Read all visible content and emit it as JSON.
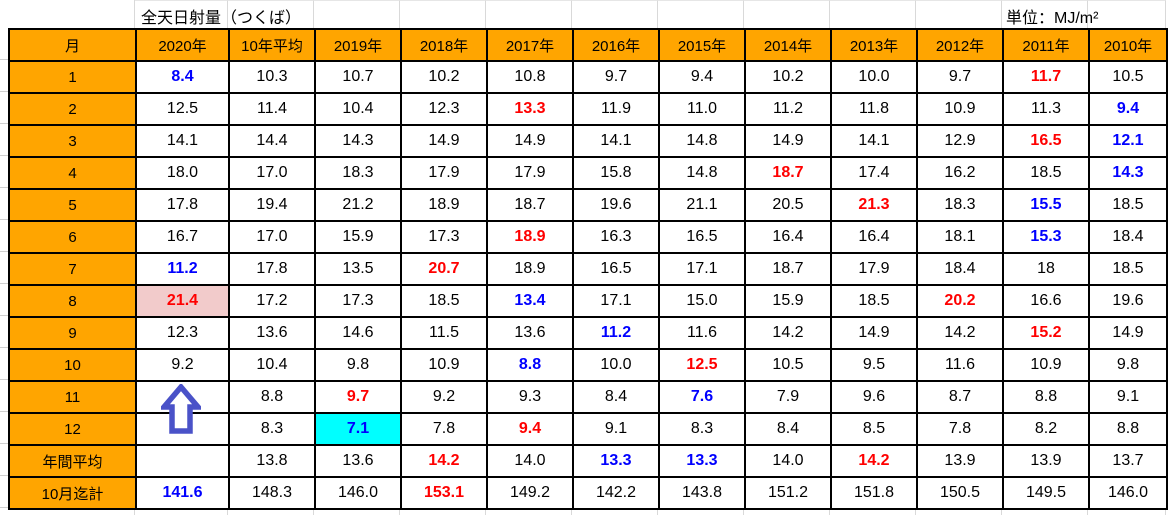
{
  "title": "全天日射量（つくば）",
  "unit_label": "単位：MJ/m²",
  "colors": {
    "header_bg": "#FFA500",
    "highlight_pink": "#F2CBCB",
    "highlight_cyan": "#00FFFF",
    "value_blue": "#0000FF",
    "value_red": "#FF0000",
    "arrow_blue": "#4A52C8",
    "border_black": "#000000",
    "gridline_gray": "#D9D9D9"
  },
  "annotations": {
    "up_arrow": {
      "shape": "block-up-arrow-outline",
      "color": "#4A52C8",
      "location": "2020年 column, rows 11-12 (missing data)"
    }
  },
  "table": {
    "columns": [
      "月",
      "2020年",
      "10年平均",
      "2019年",
      "2018年",
      "2017年",
      "2016年",
      "2015年",
      "2014年",
      "2013年",
      "2012年",
      "2011年",
      "2010年"
    ],
    "rows": [
      {
        "label": "1",
        "cells": [
          {
            "v": "8.4",
            "c": "blue"
          },
          {
            "v": "10.3"
          },
          {
            "v": "10.7"
          },
          {
            "v": "10.2"
          },
          {
            "v": "10.8"
          },
          {
            "v": "9.7"
          },
          {
            "v": "9.4"
          },
          {
            "v": "10.2"
          },
          {
            "v": "10.0"
          },
          {
            "v": "9.7"
          },
          {
            "v": "11.7",
            "c": "red"
          },
          {
            "v": "10.5"
          }
        ]
      },
      {
        "label": "2",
        "cells": [
          {
            "v": "12.5"
          },
          {
            "v": "11.4"
          },
          {
            "v": "10.4"
          },
          {
            "v": "12.3"
          },
          {
            "v": "13.3",
            "c": "red"
          },
          {
            "v": "11.9"
          },
          {
            "v": "11.0"
          },
          {
            "v": "11.2"
          },
          {
            "v": "11.8"
          },
          {
            "v": "10.9"
          },
          {
            "v": "11.3"
          },
          {
            "v": "9.4",
            "c": "blue"
          }
        ]
      },
      {
        "label": "3",
        "cells": [
          {
            "v": "14.1"
          },
          {
            "v": "14.4"
          },
          {
            "v": "14.3"
          },
          {
            "v": "14.9"
          },
          {
            "v": "14.9"
          },
          {
            "v": "14.1"
          },
          {
            "v": "14.8"
          },
          {
            "v": "14.9"
          },
          {
            "v": "14.1"
          },
          {
            "v": "12.9"
          },
          {
            "v": "16.5",
            "c": "red"
          },
          {
            "v": "12.1",
            "c": "blue"
          }
        ]
      },
      {
        "label": "4",
        "cells": [
          {
            "v": "18.0"
          },
          {
            "v": "17.0"
          },
          {
            "v": "18.3"
          },
          {
            "v": "17.9"
          },
          {
            "v": "17.9"
          },
          {
            "v": "15.8"
          },
          {
            "v": "14.8"
          },
          {
            "v": "18.7",
            "c": "red"
          },
          {
            "v": "17.4"
          },
          {
            "v": "16.2"
          },
          {
            "v": "18.5"
          },
          {
            "v": "14.3",
            "c": "blue"
          }
        ]
      },
      {
        "label": "5",
        "cells": [
          {
            "v": "17.8"
          },
          {
            "v": "19.4"
          },
          {
            "v": "21.2"
          },
          {
            "v": "18.9"
          },
          {
            "v": "18.7"
          },
          {
            "v": "19.6"
          },
          {
            "v": "21.1"
          },
          {
            "v": "20.5"
          },
          {
            "v": "21.3",
            "c": "red"
          },
          {
            "v": "18.3"
          },
          {
            "v": "15.5",
            "c": "blue"
          },
          {
            "v": "18.5"
          }
        ]
      },
      {
        "label": "6",
        "cells": [
          {
            "v": "16.7"
          },
          {
            "v": "17.0"
          },
          {
            "v": "15.9"
          },
          {
            "v": "17.3"
          },
          {
            "v": "18.9",
            "c": "red"
          },
          {
            "v": "16.3"
          },
          {
            "v": "16.5"
          },
          {
            "v": "16.4"
          },
          {
            "v": "16.4"
          },
          {
            "v": "18.1"
          },
          {
            "v": "15.3",
            "c": "blue"
          },
          {
            "v": "18.4"
          }
        ]
      },
      {
        "label": "7",
        "cells": [
          {
            "v": "11.2",
            "c": "blue"
          },
          {
            "v": "17.8"
          },
          {
            "v": "13.5"
          },
          {
            "v": "20.7",
            "c": "red"
          },
          {
            "v": "18.9"
          },
          {
            "v": "16.5"
          },
          {
            "v": "17.1"
          },
          {
            "v": "18.7"
          },
          {
            "v": "17.9"
          },
          {
            "v": "18.4"
          },
          {
            "v": "18"
          },
          {
            "v": "18.5"
          }
        ]
      },
      {
        "label": "8",
        "cells": [
          {
            "v": "21.4",
            "c": "red",
            "bg": "pink"
          },
          {
            "v": "17.2"
          },
          {
            "v": "17.3"
          },
          {
            "v": "18.5"
          },
          {
            "v": "13.4",
            "c": "blue"
          },
          {
            "v": "17.1"
          },
          {
            "v": "15.0"
          },
          {
            "v": "15.9"
          },
          {
            "v": "18.5"
          },
          {
            "v": "20.2",
            "c": "red"
          },
          {
            "v": "16.6"
          },
          {
            "v": "19.6"
          }
        ]
      },
      {
        "label": "9",
        "cells": [
          {
            "v": "12.3"
          },
          {
            "v": "13.6"
          },
          {
            "v": "14.6"
          },
          {
            "v": "11.5"
          },
          {
            "v": "13.6"
          },
          {
            "v": "11.2",
            "c": "blue"
          },
          {
            "v": "11.6"
          },
          {
            "v": "14.2"
          },
          {
            "v": "14.9"
          },
          {
            "v": "14.2"
          },
          {
            "v": "15.2",
            "c": "red"
          },
          {
            "v": "14.9"
          }
        ]
      },
      {
        "label": "10",
        "cells": [
          {
            "v": "9.2"
          },
          {
            "v": "10.4"
          },
          {
            "v": "9.8"
          },
          {
            "v": "10.9"
          },
          {
            "v": "8.8",
            "c": "blue"
          },
          {
            "v": "10.0"
          },
          {
            "v": "12.5",
            "c": "red"
          },
          {
            "v": "10.5"
          },
          {
            "v": "9.5"
          },
          {
            "v": "11.6"
          },
          {
            "v": "10.9"
          },
          {
            "v": "9.8"
          }
        ]
      },
      {
        "label": "11",
        "cells": [
          {
            "v": ""
          },
          {
            "v": "8.8"
          },
          {
            "v": "9.7",
            "c": "red"
          },
          {
            "v": "9.2"
          },
          {
            "v": "9.3"
          },
          {
            "v": "8.4"
          },
          {
            "v": "7.6",
            "c": "blue"
          },
          {
            "v": "7.9"
          },
          {
            "v": "9.6"
          },
          {
            "v": "8.7"
          },
          {
            "v": "8.8"
          },
          {
            "v": "9.1"
          }
        ]
      },
      {
        "label": "12",
        "cells": [
          {
            "v": ""
          },
          {
            "v": "8.3"
          },
          {
            "v": "7.1",
            "c": "blue",
            "bg": "cyan"
          },
          {
            "v": "7.8"
          },
          {
            "v": "9.4",
            "c": "red"
          },
          {
            "v": "9.1"
          },
          {
            "v": "8.3"
          },
          {
            "v": "8.4"
          },
          {
            "v": "8.5"
          },
          {
            "v": "7.8"
          },
          {
            "v": "8.2"
          },
          {
            "v": "8.8"
          }
        ]
      },
      {
        "label": "年間平均",
        "cells": [
          {
            "v": ""
          },
          {
            "v": "13.8"
          },
          {
            "v": "13.6"
          },
          {
            "v": "14.2",
            "c": "red"
          },
          {
            "v": "14.0"
          },
          {
            "v": "13.3",
            "c": "blue"
          },
          {
            "v": "13.3",
            "c": "blue"
          },
          {
            "v": "14.0"
          },
          {
            "v": "14.2",
            "c": "red"
          },
          {
            "v": "13.9"
          },
          {
            "v": "13.9"
          },
          {
            "v": "13.7"
          }
        ]
      },
      {
        "label": "10月迄計",
        "cells": [
          {
            "v": "141.6",
            "c": "blue"
          },
          {
            "v": "148.3"
          },
          {
            "v": "146.0"
          },
          {
            "v": "153.1",
            "c": "red"
          },
          {
            "v": "149.2"
          },
          {
            "v": "142.2"
          },
          {
            "v": "143.8"
          },
          {
            "v": "151.2"
          },
          {
            "v": "151.8"
          },
          {
            "v": "150.5"
          },
          {
            "v": "149.5"
          },
          {
            "v": "146.0"
          }
        ]
      }
    ]
  }
}
